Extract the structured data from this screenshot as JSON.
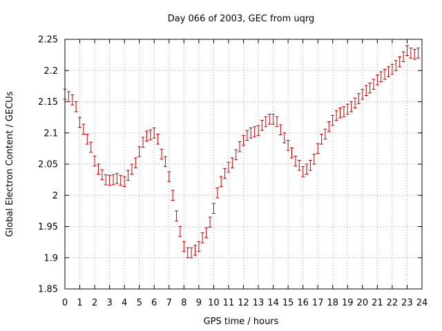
{
  "chart_data": {
    "type": "scatter",
    "title": "Day 066 of 2003, GEC from uqrg",
    "xlabel": "GPS time / hours",
    "ylabel": "Global Electron Content / GECUs",
    "xlim": [
      0,
      24
    ],
    "ylim": [
      1.85,
      2.25
    ],
    "x_ticks": [
      "0",
      "1",
      "2",
      "3",
      "4",
      "5",
      "6",
      "7",
      "8",
      "9",
      "10",
      "11",
      "12",
      "13",
      "14",
      "15",
      "16",
      "17",
      "18",
      "19",
      "20",
      "21",
      "22",
      "23",
      "24"
    ],
    "y_ticks": [
      "1.85",
      "1.9",
      "1.95",
      "2",
      "2.05",
      "2.1",
      "2.15",
      "2.2",
      "2.25"
    ],
    "grid": true,
    "error_bar_color": "#c00000",
    "series": [
      {
        "error": 0.008,
        "points": [
          [
            0.0,
            2.162
          ],
          [
            0.25,
            2.158
          ],
          [
            0.5,
            2.153
          ],
          [
            0.75,
            2.142
          ],
          [
            1.0,
            2.117
          ],
          [
            1.25,
            2.106
          ],
          [
            1.5,
            2.09
          ],
          [
            1.75,
            2.077
          ],
          [
            2.0,
            2.055
          ],
          [
            2.25,
            2.042
          ],
          [
            2.5,
            2.033
          ],
          [
            2.75,
            2.025
          ],
          [
            3.0,
            2.024
          ],
          [
            3.25,
            2.025
          ],
          [
            3.5,
            2.027
          ],
          [
            3.75,
            2.024
          ],
          [
            4.0,
            2.022
          ],
          [
            4.25,
            2.032
          ],
          [
            4.5,
            2.042
          ],
          [
            4.75,
            2.052
          ],
          [
            5.0,
            2.07
          ],
          [
            5.25,
            2.085
          ],
          [
            5.5,
            2.095
          ],
          [
            5.75,
            2.097
          ],
          [
            6.0,
            2.1
          ],
          [
            6.25,
            2.09
          ],
          [
            6.5,
            2.066
          ],
          [
            6.75,
            2.054
          ],
          [
            7.0,
            2.03
          ],
          [
            7.25,
            2.0
          ],
          [
            7.5,
            1.967
          ],
          [
            7.75,
            1.942
          ],
          [
            8.0,
            1.918
          ],
          [
            8.25,
            1.908
          ],
          [
            8.5,
            1.908
          ],
          [
            8.75,
            1.912
          ],
          [
            9.0,
            1.918
          ],
          [
            9.25,
            1.932
          ],
          [
            9.5,
            1.94
          ],
          [
            9.75,
            1.957
          ],
          [
            10.0,
            1.979
          ],
          [
            10.25,
            2.004
          ],
          [
            10.5,
            2.022
          ],
          [
            10.75,
            2.035
          ],
          [
            11.0,
            2.045
          ],
          [
            11.25,
            2.052
          ],
          [
            11.5,
            2.065
          ],
          [
            11.75,
            2.078
          ],
          [
            12.0,
            2.088
          ],
          [
            12.25,
            2.096
          ],
          [
            12.5,
            2.1
          ],
          [
            12.75,
            2.102
          ],
          [
            13.0,
            2.104
          ],
          [
            13.25,
            2.112
          ],
          [
            13.5,
            2.118
          ],
          [
            13.75,
            2.122
          ],
          [
            14.0,
            2.122
          ],
          [
            14.25,
            2.118
          ],
          [
            14.5,
            2.105
          ],
          [
            14.75,
            2.092
          ],
          [
            15.0,
            2.08
          ],
          [
            15.25,
            2.068
          ],
          [
            15.5,
            2.055
          ],
          [
            15.75,
            2.048
          ],
          [
            16.0,
            2.038
          ],
          [
            16.25,
            2.042
          ],
          [
            16.5,
            2.048
          ],
          [
            16.75,
            2.058
          ],
          [
            17.0,
            2.075
          ],
          [
            17.25,
            2.09
          ],
          [
            17.5,
            2.098
          ],
          [
            17.75,
            2.11
          ],
          [
            18.0,
            2.12
          ],
          [
            18.25,
            2.128
          ],
          [
            18.5,
            2.132
          ],
          [
            18.75,
            2.134
          ],
          [
            19.0,
            2.138
          ],
          [
            19.25,
            2.142
          ],
          [
            19.5,
            2.148
          ],
          [
            19.75,
            2.155
          ],
          [
            20.0,
            2.162
          ],
          [
            20.25,
            2.168
          ],
          [
            20.5,
            2.172
          ],
          [
            20.75,
            2.178
          ],
          [
            21.0,
            2.185
          ],
          [
            21.25,
            2.19
          ],
          [
            21.5,
            2.194
          ],
          [
            21.75,
            2.198
          ],
          [
            22.0,
            2.202
          ],
          [
            22.25,
            2.208
          ],
          [
            22.5,
            2.214
          ],
          [
            22.75,
            2.222
          ],
          [
            23.0,
            2.232
          ],
          [
            23.25,
            2.228
          ],
          [
            23.5,
            2.226
          ],
          [
            23.75,
            2.228
          ]
        ]
      }
    ]
  }
}
